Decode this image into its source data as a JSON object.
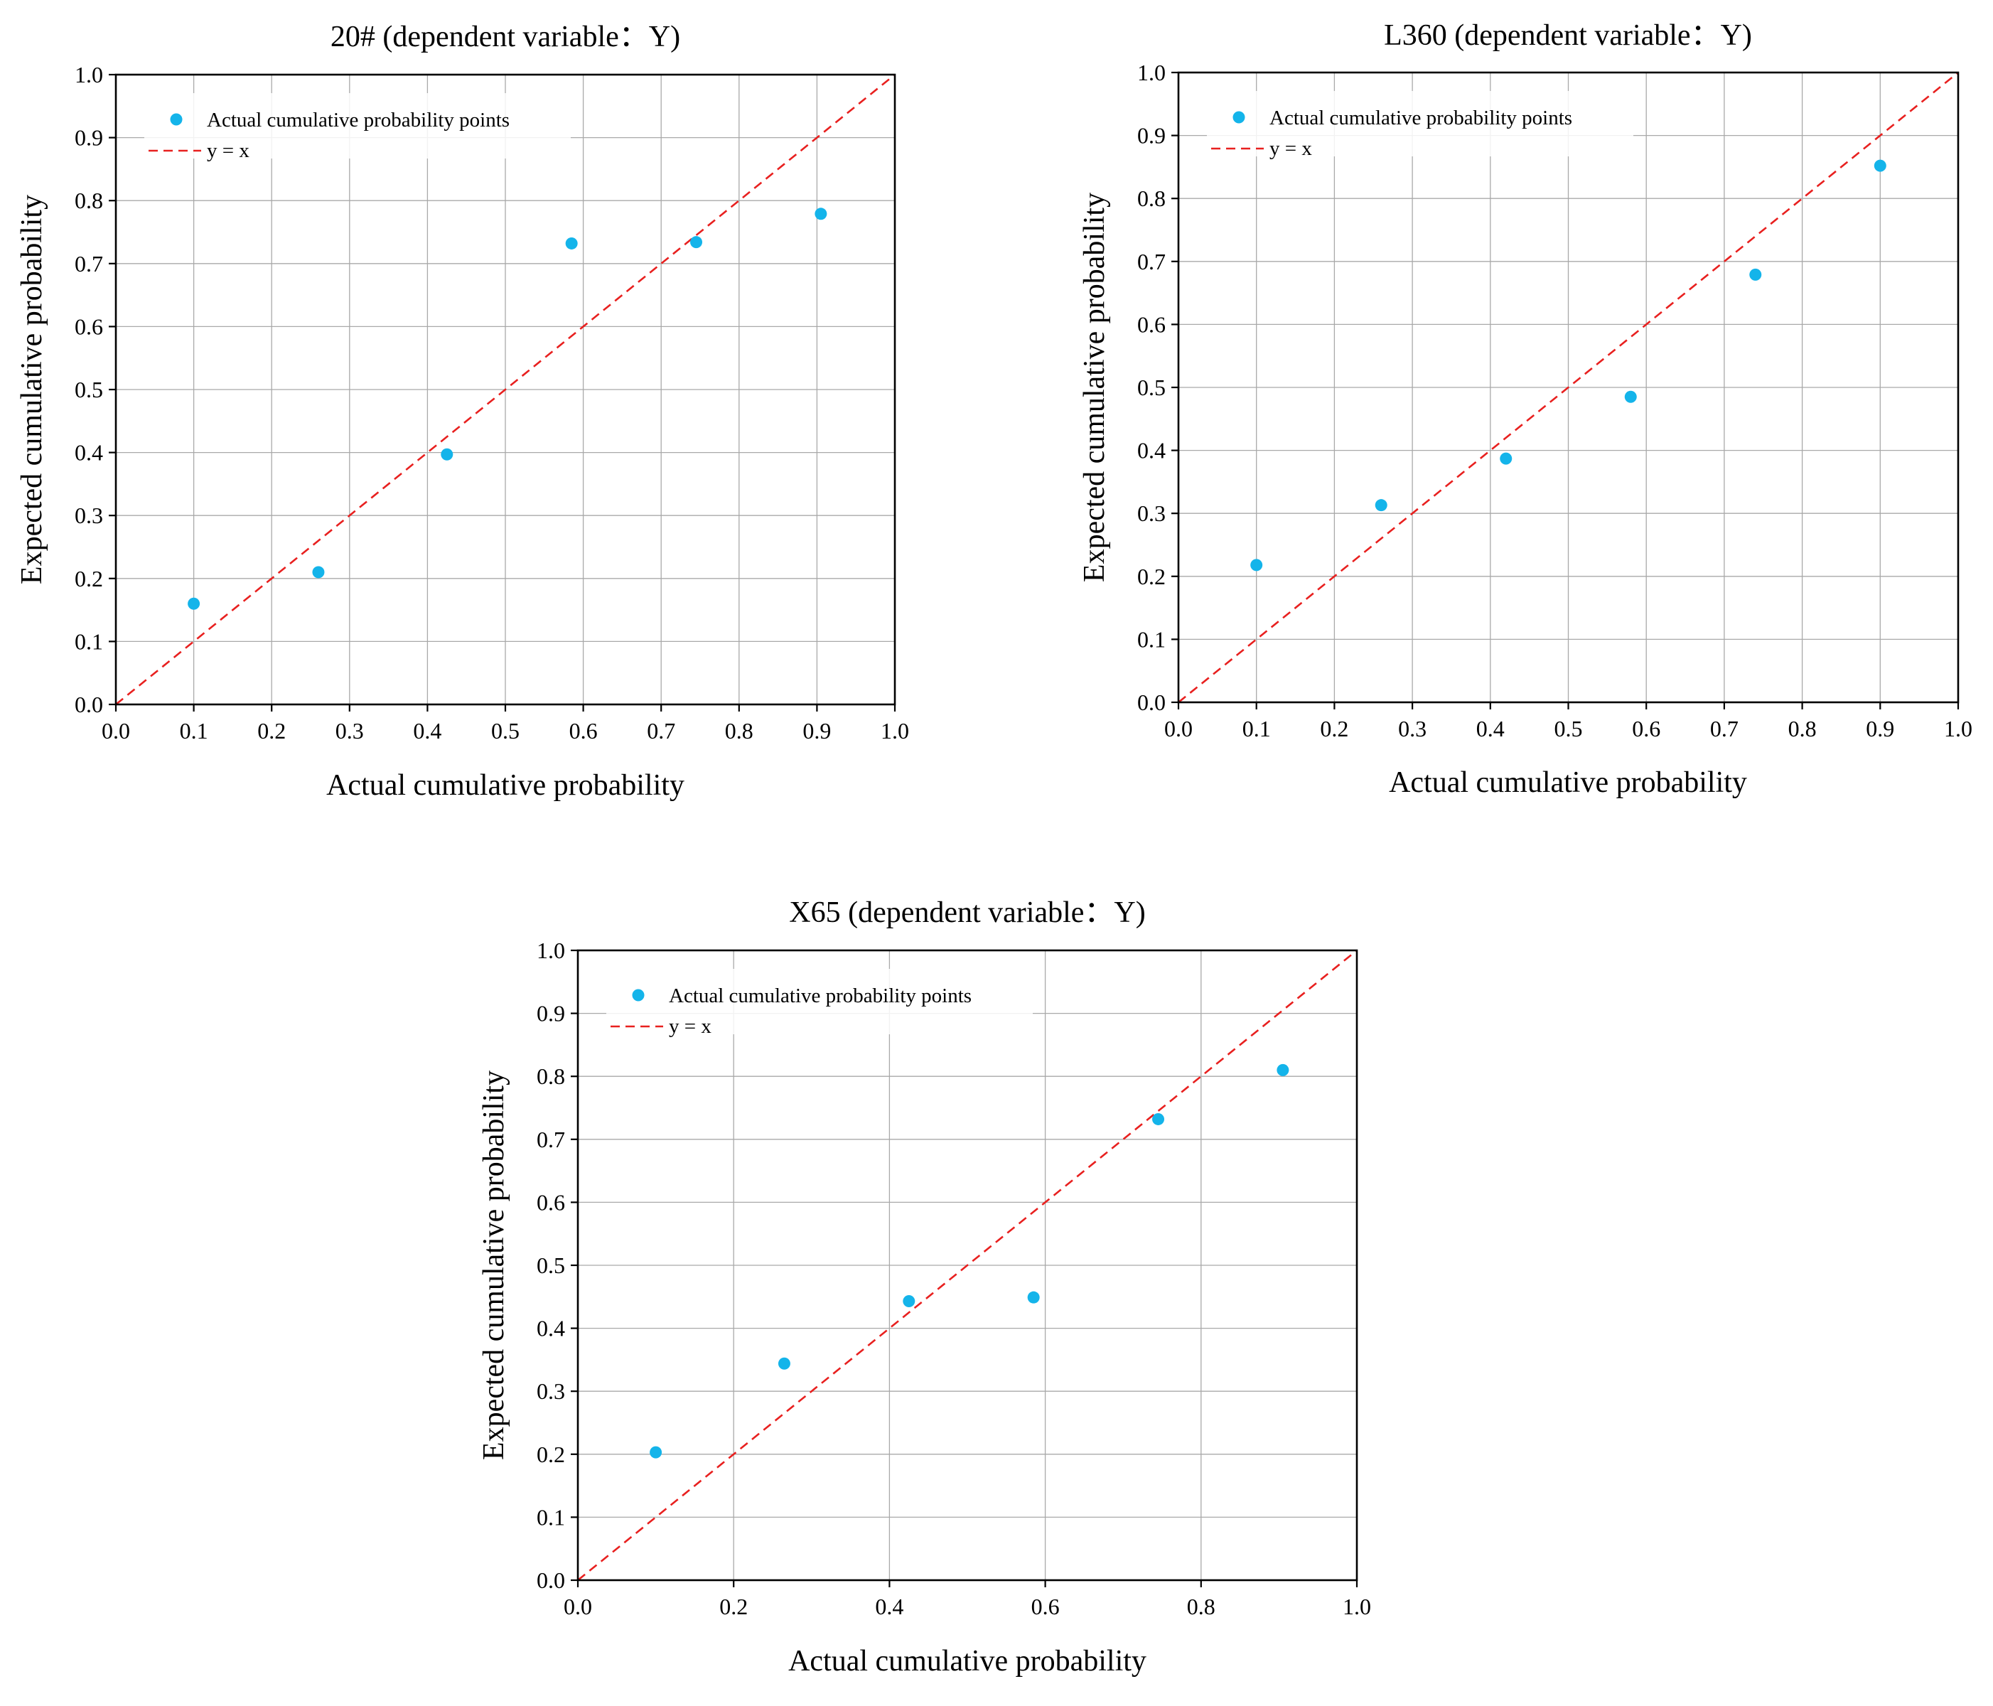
{
  "figure": {
    "colors": {
      "points": "#14b4ea",
      "reference_line": "#e8201f",
      "grid": "#a9a9a9",
      "axes": "#000000",
      "background": "#ffffff"
    }
  },
  "chart_data": [
    {
      "type": "scatter",
      "title": "20#  (dependent variable：Y)",
      "xlabel": "Actual cumulative probability",
      "ylabel": "Expected cumulative probability",
      "xlim": [
        0,
        1
      ],
      "ylim": [
        0,
        1
      ],
      "xticks": [
        "0.0",
        "0.1",
        "0.2",
        "0.3",
        "0.4",
        "0.5",
        "0.6",
        "0.7",
        "0.8",
        "0.9",
        "1.0"
      ],
      "yticks": [
        "0.0",
        "0.1",
        "0.2",
        "0.3",
        "0.4",
        "0.5",
        "0.6",
        "0.7",
        "0.8",
        "0.9",
        "1.0"
      ],
      "grid": true,
      "legend_position": "top-left",
      "series": [
        {
          "name": "Actual cumulative probability points",
          "kind": "scatter",
          "points": [
            {
              "x": 0.1,
              "y": 0.16
            },
            {
              "x": 0.26,
              "y": 0.21
            },
            {
              "x": 0.425,
              "y": 0.397
            },
            {
              "x": 0.585,
              "y": 0.732
            },
            {
              "x": 0.745,
              "y": 0.734
            },
            {
              "x": 0.905,
              "y": 0.779
            }
          ]
        },
        {
          "name": "y = x",
          "kind": "dashed-line",
          "points": [
            {
              "x": 0,
              "y": 0
            },
            {
              "x": 1,
              "y": 1
            }
          ]
        }
      ]
    },
    {
      "type": "scatter",
      "title": "L360  (dependent variable：Y)",
      "xlabel": "Actual cumulative probability",
      "ylabel": "Expected cumulative probability",
      "xlim": [
        0,
        1
      ],
      "ylim": [
        0,
        1
      ],
      "xticks": [
        "0.0",
        "0.1",
        "0.2",
        "0.3",
        "0.4",
        "0.5",
        "0.6",
        "0.7",
        "0.8",
        "0.9",
        "1.0"
      ],
      "yticks": [
        "0.0",
        "0.1",
        "0.2",
        "0.3",
        "0.4",
        "0.5",
        "0.6",
        "0.7",
        "0.8",
        "0.9",
        "1.0"
      ],
      "grid": true,
      "legend_position": "top-left",
      "series": [
        {
          "name": "Actual cumulative probability points",
          "kind": "scatter",
          "points": [
            {
              "x": 0.1,
              "y": 0.218
            },
            {
              "x": 0.26,
              "y": 0.313
            },
            {
              "x": 0.42,
              "y": 0.387
            },
            {
              "x": 0.58,
              "y": 0.485
            },
            {
              "x": 0.74,
              "y": 0.679
            },
            {
              "x": 0.9,
              "y": 0.852
            }
          ]
        },
        {
          "name": "y = x",
          "kind": "dashed-line",
          "points": [
            {
              "x": 0,
              "y": 0
            },
            {
              "x": 1,
              "y": 1
            }
          ]
        }
      ]
    },
    {
      "type": "scatter",
      "title": "X65  (dependent variable：Y)",
      "xlabel": "Actual cumulative probability",
      "ylabel": "Expected cumulative probability",
      "xlim": [
        0,
        1
      ],
      "ylim": [
        0,
        1
      ],
      "xticks": [
        "0.0",
        "0.2",
        "0.4",
        "0.6",
        "0.8",
        "1.0"
      ],
      "yticks": [
        "0.0",
        "0.1",
        "0.2",
        "0.3",
        "0.4",
        "0.5",
        "0.6",
        "0.7",
        "0.8",
        "0.9",
        "1.0"
      ],
      "grid": true,
      "legend_position": "top-left",
      "series": [
        {
          "name": "Actual cumulative probability points",
          "kind": "scatter",
          "points": [
            {
              "x": 0.1,
              "y": 0.203
            },
            {
              "x": 0.265,
              "y": 0.344
            },
            {
              "x": 0.425,
              "y": 0.443
            },
            {
              "x": 0.585,
              "y": 0.449
            },
            {
              "x": 0.745,
              "y": 0.732
            },
            {
              "x": 0.905,
              "y": 0.81
            }
          ]
        },
        {
          "name": "y = x",
          "kind": "dashed-line",
          "points": [
            {
              "x": 0,
              "y": 0
            },
            {
              "x": 1,
              "y": 1
            }
          ]
        }
      ]
    }
  ]
}
